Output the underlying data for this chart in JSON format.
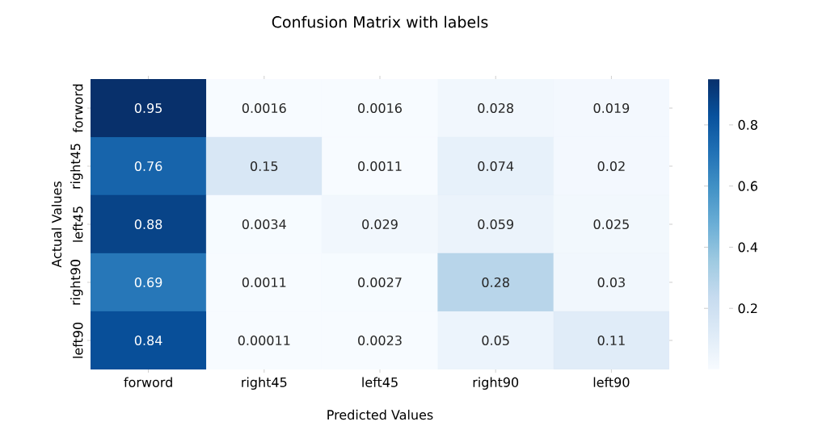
{
  "chart_data": {
    "type": "heatmap",
    "title": "Confusion Matrix with labels",
    "xlabel": "Predicted Values",
    "ylabel": "Actual Values",
    "categories": [
      "forword",
      "right45",
      "left45",
      "right90",
      "left90"
    ],
    "y_categories": [
      "forword",
      "right45",
      "left45",
      "right90",
      "left90"
    ],
    "cells": [
      [
        0.95,
        0.0016,
        0.0016,
        0.028,
        0.019
      ],
      [
        0.76,
        0.15,
        0.0011,
        0.074,
        0.02
      ],
      [
        0.88,
        0.0034,
        0.029,
        0.059,
        0.025
      ],
      [
        0.69,
        0.0011,
        0.0027,
        0.28,
        0.03
      ],
      [
        0.84,
        0.00011,
        0.0023,
        0.05,
        0.11
      ]
    ],
    "clim": [
      0.00011,
      0.95
    ],
    "cticks": [
      0.2,
      0.4,
      0.6,
      0.8
    ],
    "data_labels": true
  }
}
